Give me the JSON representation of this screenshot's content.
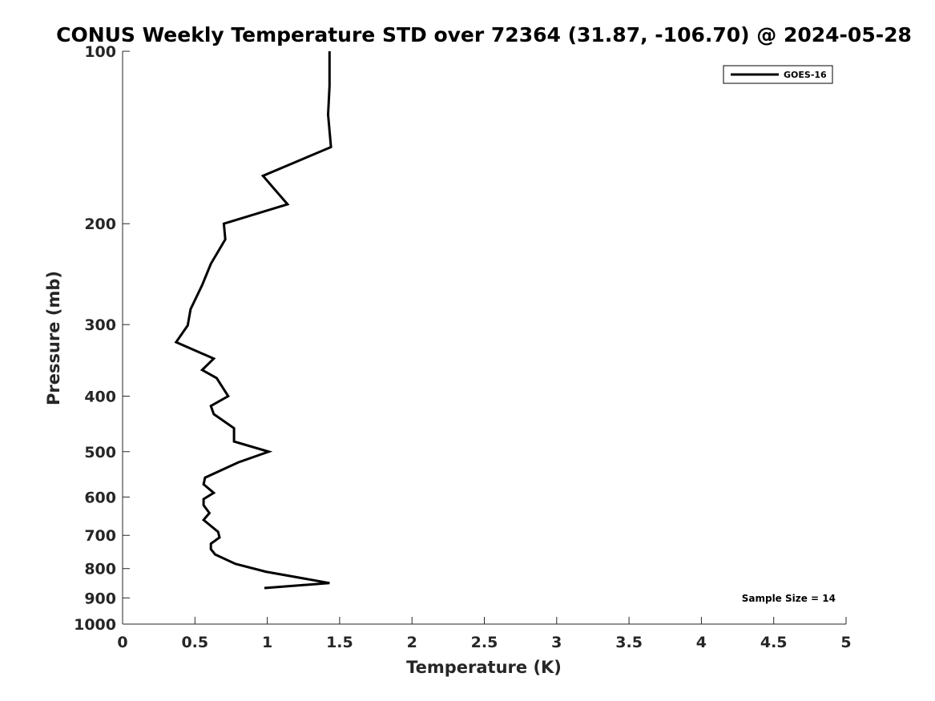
{
  "chart_data": {
    "type": "line",
    "title": "CONUS Weekly Temperature STD over 72364 (31.87, -106.70) @ 2024-05-28",
    "xlabel": "Temperature (K)",
    "ylabel": "Pressure (mb)",
    "xlim": [
      0,
      5
    ],
    "ylim": [
      1000,
      100
    ],
    "y_scale": "log",
    "y_reversed": true,
    "grid": false,
    "legend_position": "top-right",
    "x_ticks": [
      0,
      0.5,
      1,
      1.5,
      2,
      2.5,
      3,
      3.5,
      4,
      4.5,
      5
    ],
    "x_tick_labels": [
      "0",
      "0.5",
      "1",
      "1.5",
      "2",
      "2.5",
      "3",
      "3.5",
      "4",
      "4.5",
      "5"
    ],
    "y_ticks": [
      100,
      200,
      300,
      400,
      500,
      600,
      700,
      800,
      900,
      1000
    ],
    "y_tick_labels": [
      "100",
      "200",
      "300",
      "400",
      "500",
      "600",
      "700",
      "800",
      "900",
      "1000"
    ],
    "series": [
      {
        "name": "GOES-16",
        "color": "#000000",
        "x": [
          1.43,
          1.43,
          1.42,
          1.44,
          0.97,
          1.14,
          0.7,
          0.71,
          0.61,
          0.55,
          0.47,
          0.45,
          0.37,
          0.63,
          0.55,
          0.65,
          0.73,
          0.61,
          0.63,
          0.77,
          0.77,
          1.01,
          0.8,
          0.57,
          0.56,
          0.63,
          0.56,
          0.56,
          0.6,
          0.56,
          0.66,
          0.67,
          0.61,
          0.61,
          0.64,
          0.78,
          0.99,
          1.43,
          0.98
        ],
        "y": [
          100,
          115,
          129,
          147,
          165,
          185,
          200,
          213,
          235,
          256,
          282,
          301,
          322,
          344,
          360,
          372,
          400,
          416,
          430,
          455,
          480,
          500,
          522,
          555,
          570,
          590,
          605,
          620,
          640,
          658,
          690,
          706,
          724,
          740,
          756,
          785,
          810,
          848,
          865
        ]
      }
    ],
    "annotations": [
      "Sample Size = 14"
    ]
  }
}
